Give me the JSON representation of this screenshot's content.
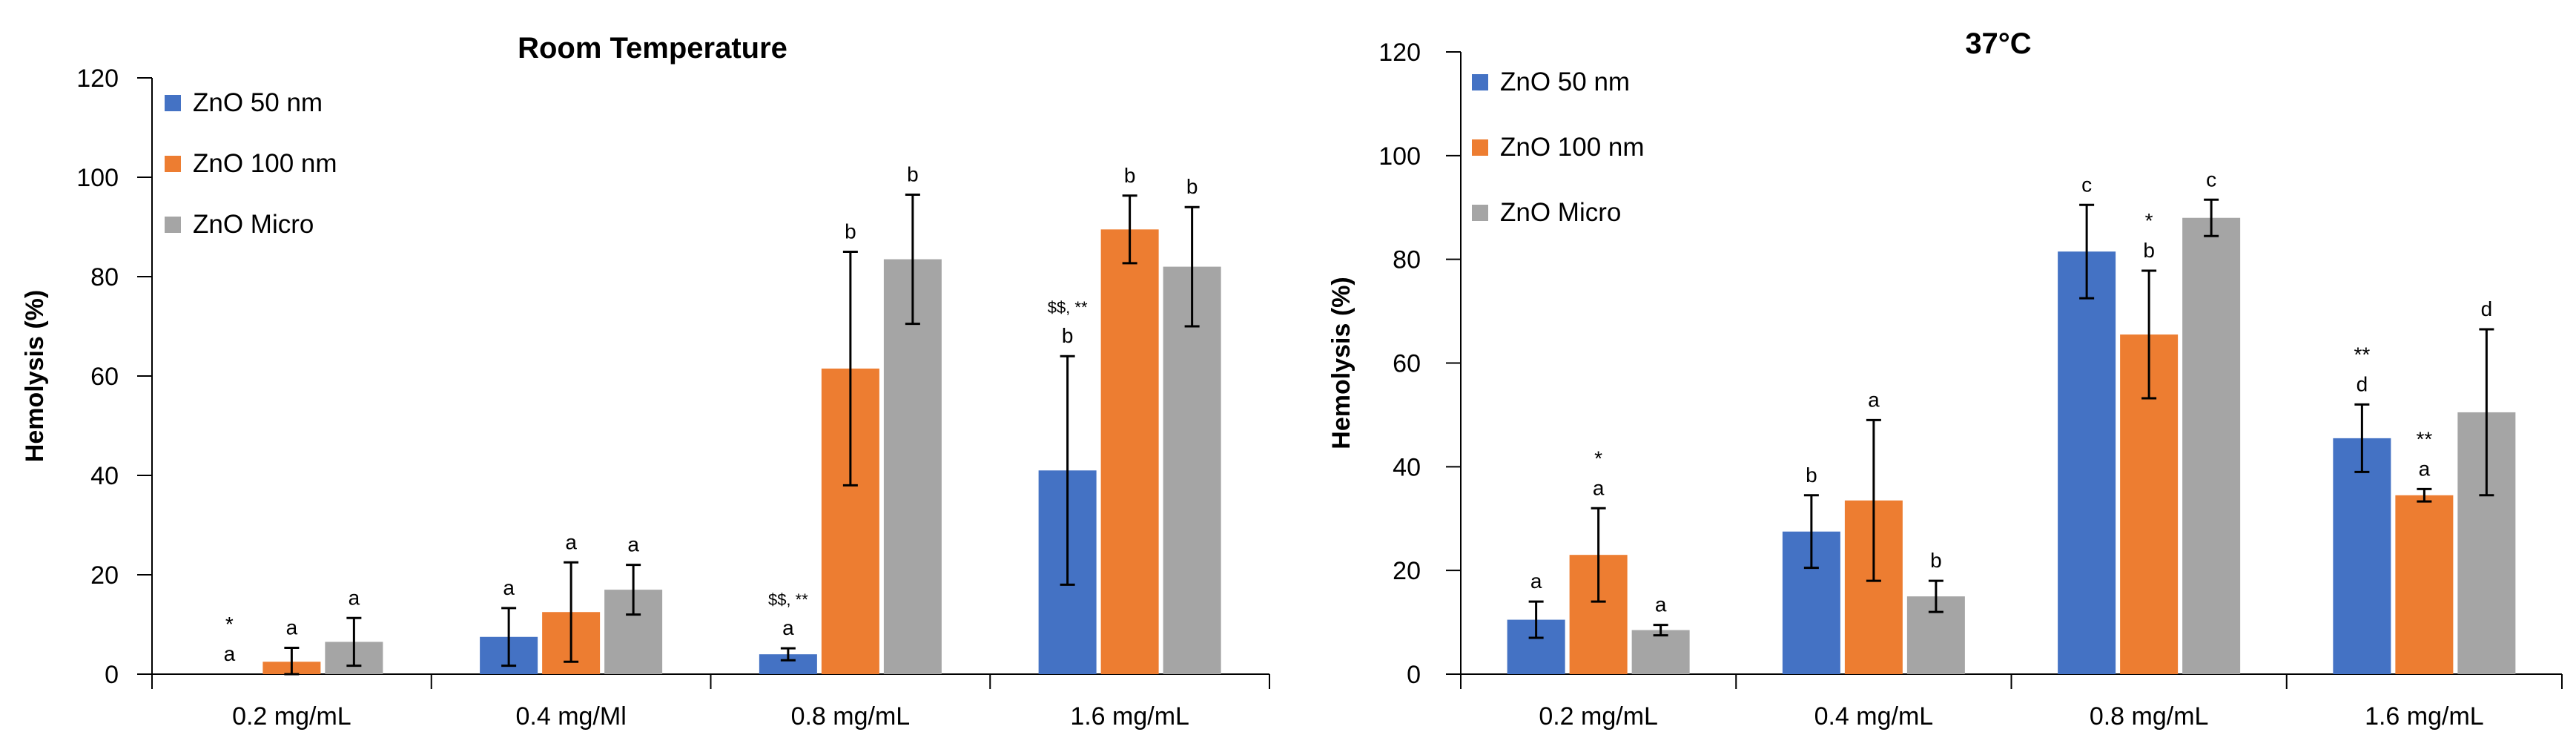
{
  "figure": {
    "background": "#ffffff"
  },
  "colors": {
    "ZnO 50 nm": "#4472c4",
    "ZnO 100 nm": "#ed7d31",
    "ZnO Micro": "#a5a5a5"
  },
  "chart_data": [
    {
      "type": "bar",
      "title": "Room Temperature",
      "ylabel": "Hemolysis (%)",
      "xlabel": "",
      "ylim": [
        0,
        120
      ],
      "yticks": [
        0,
        20,
        40,
        60,
        80,
        100,
        120
      ],
      "grid": false,
      "legend": "top-left",
      "categories": [
        "0.2 mg/mL",
        "0.4 mg/Ml",
        "0.8 mg/mL",
        "1.6 mg/mL"
      ],
      "series": [
        {
          "name": "ZnO 50 nm",
          "values": [
            0,
            7.5,
            4,
            41
          ],
          "error": [
            0,
            5.8,
            1.2,
            23
          ],
          "labels": [
            [
              "*",
              "a"
            ],
            [
              "a"
            ],
            [
              "$$, **",
              "a"
            ],
            [
              "$$, **",
              "b"
            ]
          ]
        },
        {
          "name": "ZnO 100 nm",
          "values": [
            2.5,
            12.5,
            61.5,
            89.5
          ],
          "error": [
            2.8,
            10,
            23.5,
            6.8
          ],
          "labels": [
            [
              "a"
            ],
            [
              "a"
            ],
            [
              "b"
            ],
            [
              "b"
            ]
          ]
        },
        {
          "name": "ZnO Micro",
          "values": [
            6.5,
            17,
            83.5,
            82
          ],
          "error": [
            4.8,
            5,
            13,
            12
          ],
          "labels": [
            [
              "a"
            ],
            [
              "a"
            ],
            [
              "b"
            ],
            [
              "b"
            ]
          ]
        }
      ]
    },
    {
      "type": "bar",
      "title": "37°C",
      "ylabel": "Hemolysis (%)",
      "xlabel": "",
      "ylim": [
        0,
        120
      ],
      "yticks": [
        0,
        20,
        40,
        60,
        80,
        100,
        120
      ],
      "grid": false,
      "legend": "top-left",
      "categories": [
        "0.2 mg/mL",
        "0.4 mg/mL",
        "0.8 mg/mL",
        "1.6 mg/mL"
      ],
      "series": [
        {
          "name": "ZnO 50 nm",
          "values": [
            10.5,
            27.5,
            81.5,
            45.5
          ],
          "error": [
            3.5,
            7,
            9,
            6.5
          ],
          "labels": [
            [
              "a"
            ],
            [
              "b"
            ],
            [
              "c"
            ],
            [
              "**",
              "d"
            ]
          ]
        },
        {
          "name": "ZnO 100 nm",
          "values": [
            23,
            33.5,
            65.5,
            34.5
          ],
          "error": [
            9,
            15.5,
            12.3,
            1.2
          ],
          "labels": [
            [
              "*",
              "a"
            ],
            [
              "a"
            ],
            [
              "*",
              "b"
            ],
            [
              "**",
              "a"
            ]
          ]
        },
        {
          "name": "ZnO Micro",
          "values": [
            8.5,
            15,
            88,
            50.5
          ],
          "error": [
            1,
            3,
            3.5,
            16
          ],
          "labels": [
            [
              "a"
            ],
            [
              "b"
            ],
            [
              "c"
            ],
            [
              "d"
            ]
          ]
        }
      ]
    }
  ]
}
